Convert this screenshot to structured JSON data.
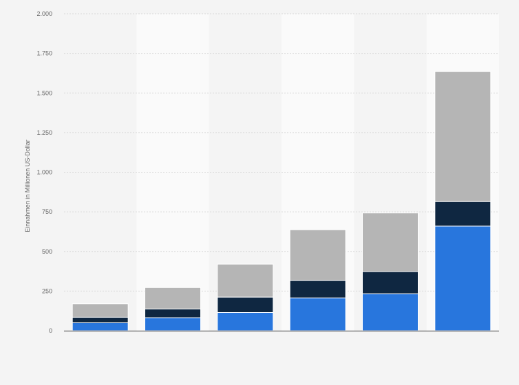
{
  "chart_data": {
    "type": "bar",
    "stacked": true,
    "categories": [
      "",
      "",
      "",
      "",
      "",
      ""
    ],
    "series": [
      {
        "values": [
          50,
          82,
          115,
          207,
          233,
          660
        ],
        "color": "#2876dd"
      },
      {
        "values": [
          35,
          55,
          97,
          110,
          140,
          155
        ],
        "color": "#0f2741"
      },
      {
        "values": [
          85,
          135,
          208,
          320,
          370,
          820
        ],
        "color": "#b5b5b5"
      }
    ],
    "title": "",
    "xlabel": "",
    "ylabel": "Einnahmen in Millionen US-Dollar",
    "ylim": [
      0,
      2000
    ],
    "yticks": [
      0,
      250,
      500,
      750,
      1000,
      1250,
      1500,
      1750,
      2000
    ],
    "ytick_labels": [
      "0",
      "250",
      "500",
      "750",
      "1.000",
      "1.250",
      "1.500",
      "1.750",
      "2.000"
    ],
    "grid": true,
    "legend": "none",
    "colors": {
      "background": "#f4f4f4",
      "band_alt": "#fafafa",
      "gridline": "#d8d8d8",
      "axis": "#333333"
    }
  }
}
